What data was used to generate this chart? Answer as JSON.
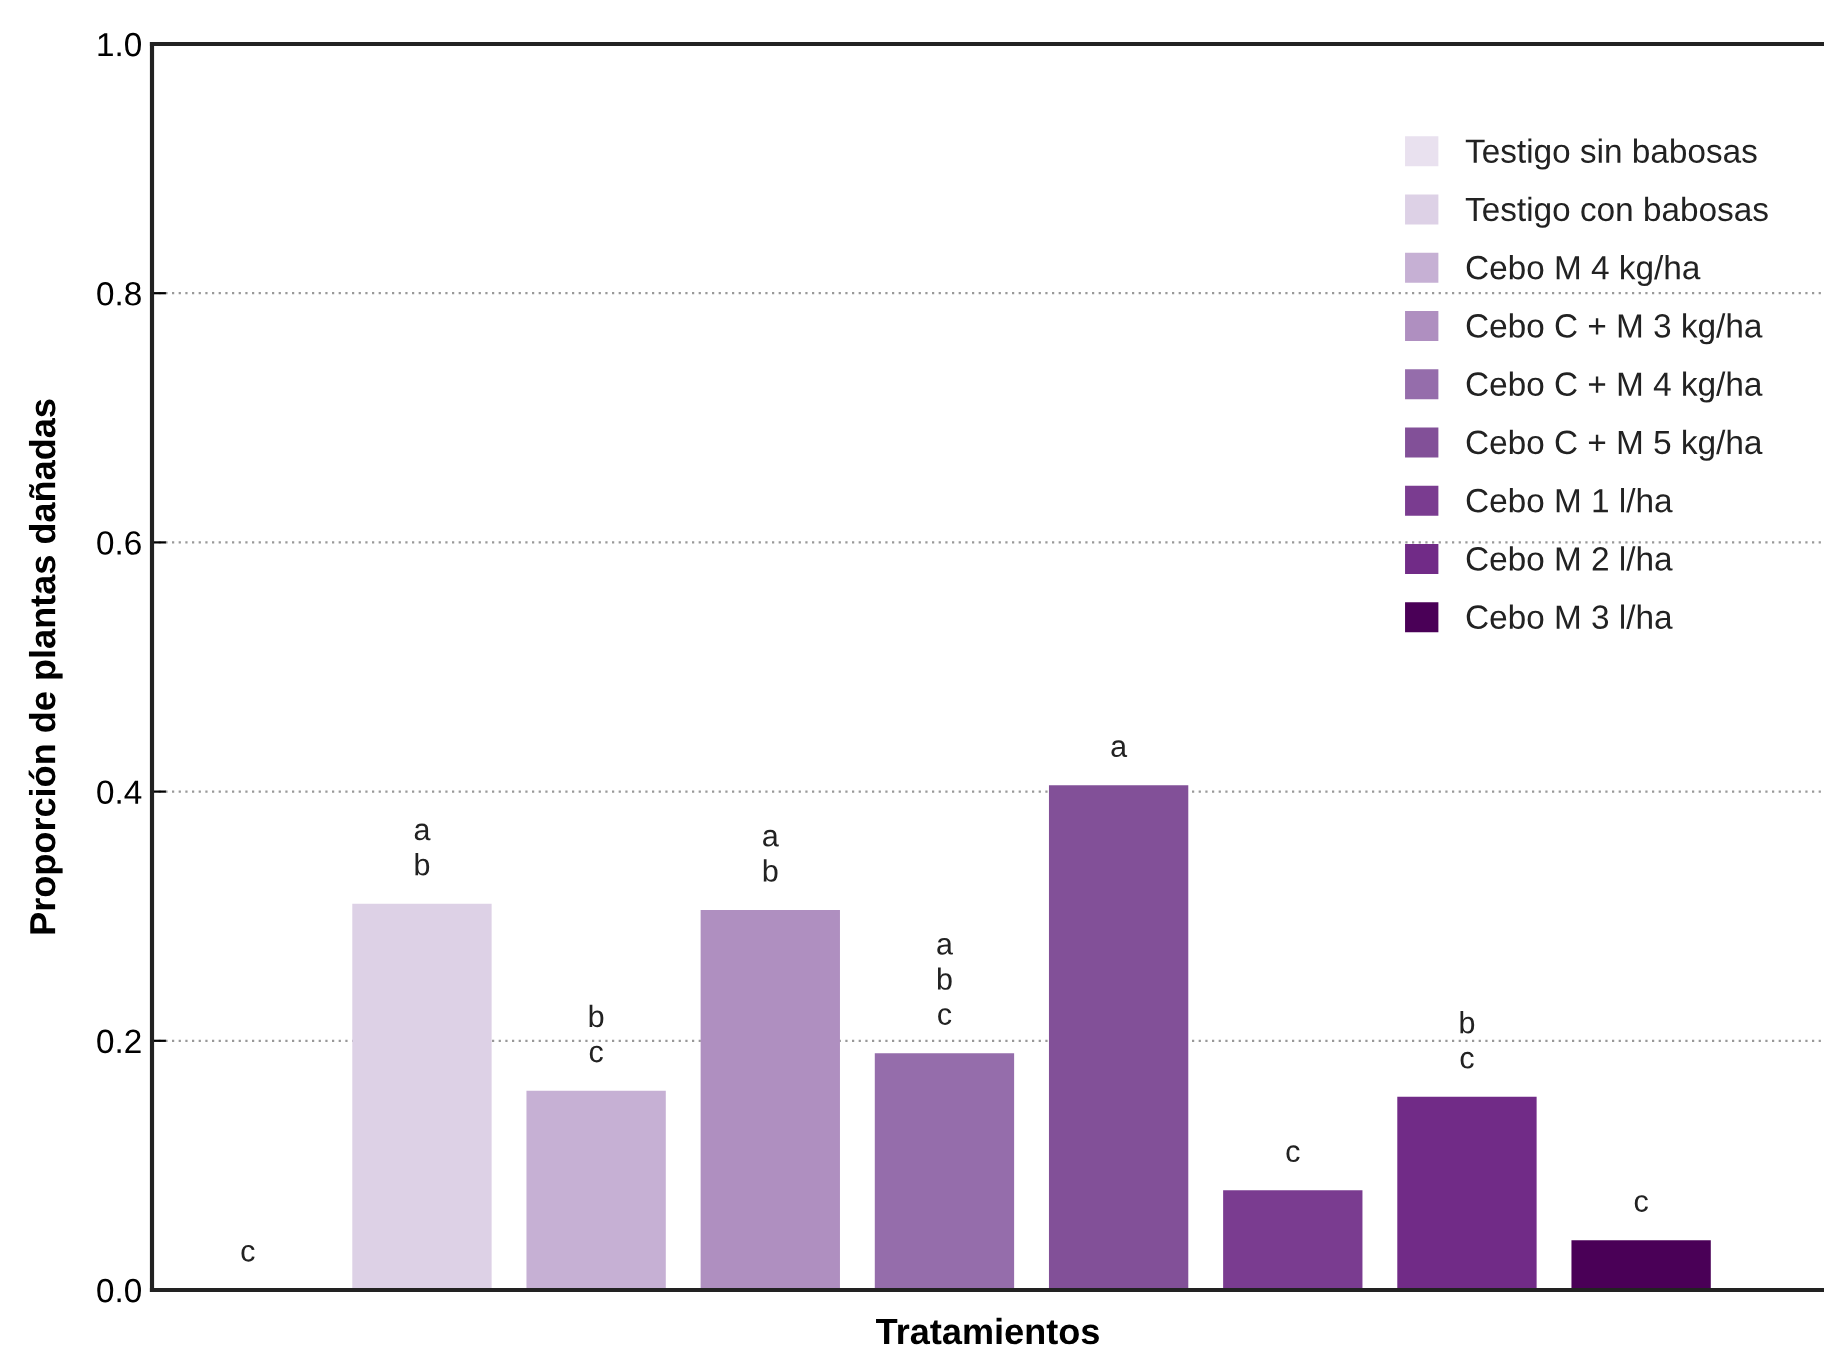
{
  "chart_data": {
    "type": "bar",
    "xlabel": "Tratamientos",
    "ylabel": "Proporción de plantas dañadas",
    "categories": [
      null,
      null,
      null,
      null,
      null,
      null,
      null,
      null,
      null
    ],
    "series": [
      {
        "name": "Testigo sin babosas",
        "color": "#e9e1ef",
        "values": [
          0,
          null,
          null,
          null,
          null,
          null,
          null,
          null,
          null
        ],
        "value_labels": [
          "c",
          null,
          null,
          null,
          null,
          null,
          null,
          null,
          null
        ]
      },
      {
        "name": "Testigo con babosas",
        "color": "#ddd1e6",
        "values": [
          null,
          0.31,
          null,
          null,
          null,
          null,
          null,
          null,
          null
        ],
        "value_labels": [
          null,
          "a\nb",
          null,
          null,
          null,
          null,
          null,
          null,
          null
        ]
      },
      {
        "name": "Cebo M 4 kg/ha",
        "color": "#c6b0d4",
        "values": [
          null,
          null,
          0.16,
          null,
          null,
          null,
          null,
          null,
          null
        ],
        "value_labels": [
          null,
          null,
          "b\nc",
          null,
          null,
          null,
          null,
          null,
          null
        ]
      },
      {
        "name": "Cebo C + M 3 kg/ha",
        "color": "#af8fc0",
        "values": [
          null,
          null,
          null,
          0.305,
          null,
          null,
          null,
          null,
          null
        ],
        "value_labels": [
          null,
          null,
          null,
          "a\nb",
          null,
          null,
          null,
          null,
          null
        ]
      },
      {
        "name": "Cebo C + M 4 kg/ha",
        "color": "#956dab",
        "values": [
          null,
          null,
          null,
          null,
          0.19,
          null,
          null,
          null,
          null
        ],
        "value_labels": [
          null,
          null,
          null,
          null,
          "a\nb\nc",
          null,
          null,
          null,
          null
        ]
      },
      {
        "name": "Cebo C + M 5 kg/ha",
        "color": "#825098",
        "values": [
          null,
          null,
          null,
          null,
          null,
          0.405,
          null,
          null,
          null
        ],
        "value_labels": [
          null,
          null,
          null,
          null,
          null,
          "a",
          null,
          null,
          null
        ]
      },
      {
        "name": "Cebo M 1 l/ha",
        "color": "#7a3c90",
        "values": [
          null,
          null,
          null,
          null,
          null,
          null,
          0.08,
          null,
          null
        ],
        "value_labels": [
          null,
          null,
          null,
          null,
          null,
          null,
          "c",
          null,
          null
        ]
      },
      {
        "name": "Cebo M 2 l/ha",
        "color": "#712b87",
        "values": [
          null,
          null,
          null,
          null,
          null,
          null,
          null,
          0.155,
          null
        ],
        "value_labels": [
          null,
          null,
          null,
          null,
          null,
          null,
          null,
          "b\nc",
          null
        ]
      },
      {
        "name": "Cebo M 3 l/ha",
        "color": "#4a0057",
        "values": [
          null,
          null,
          null,
          null,
          null,
          null,
          null,
          null,
          0.04
        ],
        "value_labels": [
          null,
          null,
          null,
          null,
          null,
          null,
          null,
          null,
          "c"
        ]
      }
    ],
    "ylim": [
      0,
      1
    ],
    "yticks": [
      {
        "value": 0,
        "label": "0.0"
      },
      {
        "value": 0.2,
        "label": "0.2"
      },
      {
        "value": 0.4,
        "label": "0.4"
      },
      {
        "value": 0.6,
        "label": "0.6"
      },
      {
        "value": 0.8,
        "label": "0.8"
      },
      {
        "value": 1,
        "label": "1.0"
      }
    ],
    "grid": "y",
    "legend": "top right",
    "tick_labels": "y"
  }
}
